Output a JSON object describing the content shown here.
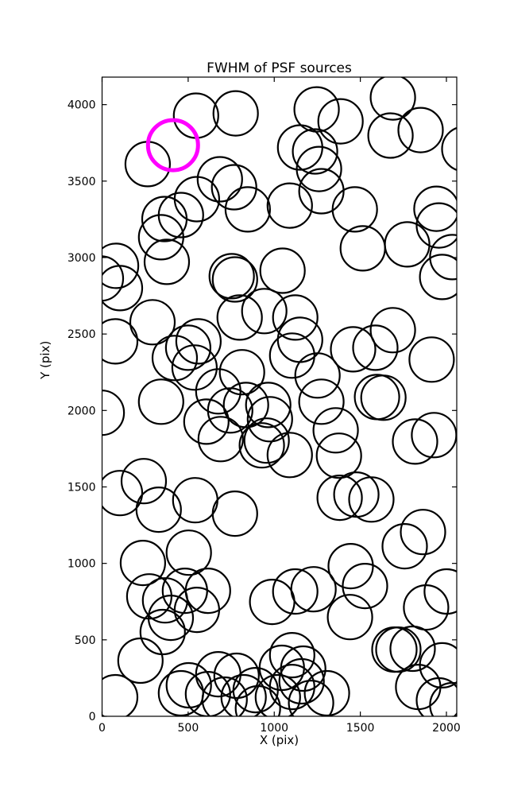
{
  "chart_data": {
    "type": "scatter",
    "title": "FWHM of PSF sources",
    "xlabel": "X (pix)",
    "ylabel": "Y (pix)",
    "xlim": [
      0,
      2060
    ],
    "ylim": [
      0,
      4180
    ],
    "xticks": [
      0,
      500,
      1000,
      1500,
      2000
    ],
    "yticks": [
      0,
      500,
      1000,
      1500,
      2000,
      2500,
      3000,
      3500,
      4000
    ],
    "grid": false,
    "legend": null,
    "marker": {
      "shape": "open-circle",
      "radius_px": 28,
      "stroke_px": 2.2,
      "color": "#000000",
      "fill": "none"
    },
    "highlight": {
      "x": 412,
      "y": 3735,
      "radius_px": 31.5,
      "stroke_px": 5,
      "color": "#ff00ff"
    },
    "points": [
      [
        546,
        3928
      ],
      [
        776,
        3943
      ],
      [
        265,
        3611
      ],
      [
        1150,
        3720
      ],
      [
        1237,
        3694
      ],
      [
        1260,
        3579
      ],
      [
        1274,
        3434
      ],
      [
        1090,
        3340
      ],
      [
        1246,
        3969
      ],
      [
        1385,
        3891
      ],
      [
        1689,
        4047
      ],
      [
        1675,
        3798
      ],
      [
        1850,
        3834
      ],
      [
        2104,
        3710
      ],
      [
        1468,
        3315
      ],
      [
        846,
        3315
      ],
      [
        684,
        3512
      ],
      [
        767,
        3460
      ],
      [
        551,
        3382
      ],
      [
        458,
        3278
      ],
      [
        362,
        3252
      ],
      [
        343,
        3133
      ],
      [
        376,
        2972
      ],
      [
        1048,
        2914
      ],
      [
        81,
        2946
      ],
      [
        104,
        2800
      ],
      [
        -7,
        2863
      ],
      [
        753,
        2878
      ],
      [
        772,
        2857
      ],
      [
        799,
        2608
      ],
      [
        942,
        2650
      ],
      [
        1122,
        2608
      ],
      [
        293,
        2577
      ],
      [
        76,
        2452
      ],
      [
        500,
        2410
      ],
      [
        560,
        2452
      ],
      [
        -2,
        1985
      ],
      [
        343,
        2057
      ],
      [
        422,
        2343
      ],
      [
        537,
        2281
      ],
      [
        813,
        2250
      ],
      [
        675,
        2125
      ],
      [
        744,
        2000
      ],
      [
        836,
        2036
      ],
      [
        965,
        2036
      ],
      [
        606,
        1927
      ],
      [
        689,
        1813
      ],
      [
        975,
        1943
      ],
      [
        956,
        1803
      ],
      [
        928,
        1772
      ],
      [
        1090,
        1709
      ],
      [
        1357,
        1870
      ],
      [
        1376,
        1704
      ],
      [
        1150,
        2462
      ],
      [
        1104,
        2359
      ],
      [
        1251,
        2229
      ],
      [
        1274,
        2057
      ],
      [
        1458,
        2400
      ],
      [
        1587,
        2410
      ],
      [
        1689,
        2525
      ],
      [
        1914,
        2333
      ],
      [
        1597,
        2088
      ],
      [
        1634,
        2083
      ],
      [
        1772,
        3086
      ],
      [
        1942,
        3319
      ],
      [
        1956,
        3210
      ],
      [
        1975,
        2873
      ],
      [
        1818,
        1797
      ],
      [
        1928,
        1839
      ],
      [
        1514,
        3060
      ],
      [
        2034,
        3003
      ],
      [
        1758,
        1112
      ],
      [
        1864,
        1205
      ],
      [
        1444,
        982
      ],
      [
        1228,
        831
      ],
      [
        1122,
        816
      ],
      [
        1527,
        852
      ],
      [
        1440,
        649
      ],
      [
        1698,
        436
      ],
      [
        1721,
        436
      ],
      [
        1804,
        442
      ],
      [
        1975,
        333
      ],
      [
        1836,
        192
      ],
      [
        1956,
        104
      ],
      [
        2034,
        73
      ],
      [
        1882,
        712
      ],
      [
        2002,
        816
      ],
      [
        242,
        1538
      ],
      [
        104,
        1460
      ],
      [
        329,
        1351
      ],
      [
        541,
        1413
      ],
      [
        772,
        1325
      ],
      [
        76,
        125
      ],
      [
        458,
        151
      ],
      [
        223,
        364
      ],
      [
        352,
        551
      ],
      [
        274,
        784
      ],
      [
        366,
        758
      ],
      [
        481,
        821
      ],
      [
        399,
        644
      ],
      [
        551,
        696
      ],
      [
        615,
        821
      ],
      [
        237,
        1003
      ],
      [
        504,
        1070
      ],
      [
        504,
        203
      ],
      [
        615,
        145
      ],
      [
        675,
        275
      ],
      [
        712,
        109
      ],
      [
        781,
        265
      ],
      [
        822,
        125
      ],
      [
        892,
        171
      ],
      [
        905,
        52
      ],
      [
        1021,
        125
      ],
      [
        1044,
        317
      ],
      [
        1159,
        229
      ],
      [
        1306,
        151
      ],
      [
        1380,
        1429
      ],
      [
        1477,
        1450
      ],
      [
        1564,
        1418
      ],
      [
        1168,
        312
      ],
      [
        1104,
        192
      ],
      [
        1214,
        88
      ],
      [
        1104,
        400
      ],
      [
        988,
        748
      ]
    ]
  },
  "colors": {
    "background": "#ffffff",
    "axis": "#000000",
    "text": "#000000",
    "highlight": "#ff00ff"
  }
}
